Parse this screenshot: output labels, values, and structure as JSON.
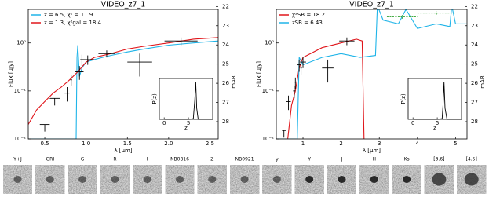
{
  "chart_data": [
    {
      "type": "line",
      "title": "VIDEO_z7_1",
      "x_label": "λ [μm]",
      "y_label": "Flux [μJy]",
      "y2_label": "mAB",
      "log_y": true,
      "legend": "upper left",
      "xlim": [
        0.3,
        2.6
      ],
      "xticks": [
        0.5,
        {
          "value": 1,
          "label": "1.0"
        },
        1.5,
        {
          "value": 2,
          "label": "2.0"
        },
        2.5
      ],
      "ylim": [
        0.01,
        5
      ],
      "yticks": [
        {
          "value": 0.01,
          "label": "10⁻²"
        },
        {
          "value": 0.1,
          "label": "10⁻¹"
        },
        {
          "value": 1,
          "label": "10⁰"
        }
      ],
      "y2lim": [
        28.9,
        22.15
      ],
      "y2ticks": [
        22,
        23,
        24,
        25,
        26,
        27,
        28
      ],
      "series": [
        {
          "name": "z = 6.5, χ² = 11.9",
          "color": "#1fb4e8",
          "x": [
            0.3,
            0.88,
            0.89,
            0.9,
            0.92,
            0.95,
            1.0,
            1.1,
            1.2,
            1.3,
            1.5,
            1.7,
            2.0,
            2.3,
            2.6
          ],
          "values": [
            0.01,
            0.01,
            0.5,
            0.9,
            0.2,
            0.3,
            0.4,
            0.45,
            0.5,
            0.55,
            0.65,
            0.75,
            0.9,
            1.0,
            1.1
          ]
        },
        {
          "name": "z = 1.3, χ²gal = 18.4",
          "color": "#e0161b",
          "x": [
            0.3,
            0.4,
            0.5,
            0.6,
            0.7,
            0.8,
            0.9,
            1.0,
            1.1,
            1.3,
            1.5,
            1.7,
            2.0,
            2.3,
            2.6
          ],
          "values": [
            0.02,
            0.04,
            0.06,
            0.09,
            0.12,
            0.17,
            0.25,
            0.4,
            0.5,
            0.6,
            0.75,
            0.85,
            1.0,
            1.2,
            1.3
          ]
        }
      ],
      "points": [
        {
          "color": "#000000",
          "dashed": false,
          "x": [
            0.77,
            0.82,
            0.92,
            0.95,
            1.02,
            1.25,
            1.65,
            2.15
          ],
          "values": [
            0.09,
            0.17,
            0.25,
            0.45,
            0.45,
            0.6,
            0.4,
            1.1
          ],
          "x_err": [
            0.03,
            0.01,
            0.05,
            0.02,
            0.08,
            0.1,
            0.15,
            0.2
          ],
          "y_err": [
            0.03,
            0.04,
            0.08,
            0.12,
            0.1,
            0.1,
            0.2,
            0.2
          ]
        }
      ],
      "upper_limits": {
        "x": [
          0.5,
          0.62
        ],
        "values": [
          0.02,
          0.07
        ],
        "x_err": [
          0.06,
          0.06
        ]
      },
      "inset": {
        "x_label": "z",
        "y_label": "P(z)",
        "xlim": [
          -1,
          10
        ],
        "ylim": [
          0,
          1.1
        ],
        "xticks": [
          0,
          5
        ],
        "x": [
          0,
          5,
          6,
          6.3,
          6.5,
          6.7,
          7,
          10
        ],
        "values": [
          0,
          0,
          0.02,
          0.5,
          1,
          0.3,
          0,
          0
        ]
      }
    },
    {
      "type": "line",
      "title": "VIDEO_z7_1",
      "x_label": "λ [μm]",
      "y_label": "Flux [μJy]",
      "y2_label": "mAB",
      "log_y": true,
      "legend": "upper left",
      "xlim": [
        0.3,
        5.3
      ],
      "xticks": [
        1,
        2,
        3,
        4,
        5
      ],
      "ylim": [
        0.01,
        5
      ],
      "yticks": [
        {
          "value": 0.01,
          "label": "10⁻²"
        },
        {
          "value": 0.1,
          "label": "10⁻¹"
        },
        {
          "value": 1,
          "label": "10⁰"
        }
      ],
      "y2lim": [
        28.9,
        22.15
      ],
      "y2ticks": [
        22,
        23,
        24,
        25,
        26,
        27,
        28
      ],
      "series": [
        {
          "name": "χ²SB = 18.2",
          "color": "#e0161b",
          "x": [
            0.4,
            0.6,
            0.7,
            0.8,
            0.9,
            1.0,
            1.2,
            1.5,
            2.0,
            2.4,
            2.55,
            2.6
          ],
          "values": [
            0.01,
            0.01,
            0.05,
            0.1,
            0.3,
            0.5,
            0.6,
            0.8,
            1.0,
            1.2,
            1.1,
            0.01
          ]
        },
        {
          "name": "zSB = 6.43",
          "color": "#1fb4e8",
          "x": [
            0.3,
            0.85,
            0.9,
            1.0,
            1.5,
            2.0,
            2.5,
            2.9,
            2.95,
            3.1,
            3.5,
            3.7,
            4.0,
            4.5,
            4.85,
            4.9,
            5.0,
            5.3
          ],
          "values": [
            0.01,
            0.01,
            0.5,
            0.35,
            0.5,
            0.6,
            0.5,
            0.55,
            6,
            3,
            2.5,
            5,
            2,
            2.5,
            2.2,
            6,
            2.5,
            2.5
          ]
        }
      ],
      "points": [
        {
          "color": "#000000",
          "dashed": false,
          "x": [
            0.62,
            0.77,
            0.8,
            0.9,
            0.95,
            1.0,
            1.65,
            2.15
          ],
          "values": [
            0.06,
            0.1,
            0.15,
            0.35,
            0.3,
            0.4,
            0.3,
            1.1
          ],
          "x_err": [
            0.06,
            0.03,
            0.01,
            0.05,
            0.02,
            0.08,
            0.15,
            0.2
          ],
          "y_err": [
            0.02,
            0.03,
            0.04,
            0.1,
            0.08,
            0.1,
            0.15,
            0.2
          ]
        },
        {
          "color": "#2ca02c",
          "dashed": true,
          "x": [
            3.6,
            4.5
          ],
          "values": [
            3.5,
            4.2
          ],
          "x_err": [
            0.4,
            0.5
          ],
          "y_err": [
            0.3,
            0.3
          ]
        }
      ],
      "upper_limits": {
        "x": [
          0.5
        ],
        "values": [
          0.015
        ],
        "x_err": [
          0.05
        ]
      },
      "inset": {
        "x_label": "z",
        "y_label": "P(z)",
        "xlim": [
          -1,
          10
        ],
        "ylim": [
          0,
          1.1
        ],
        "xticks": [
          0,
          5
        ],
        "x": [
          0,
          5,
          6,
          6.2,
          6.4,
          6.6,
          7,
          10
        ],
        "values": [
          0,
          0,
          0.02,
          0.4,
          1,
          0.3,
          0,
          0
        ]
      }
    }
  ],
  "stamps": [
    "Y+J",
    "GRI",
    "G",
    "R",
    "I",
    "NB0816",
    "Z",
    "NB0921",
    "y",
    "Y",
    "J",
    "H",
    "Ks",
    "[3.6]",
    "[4.5]"
  ]
}
